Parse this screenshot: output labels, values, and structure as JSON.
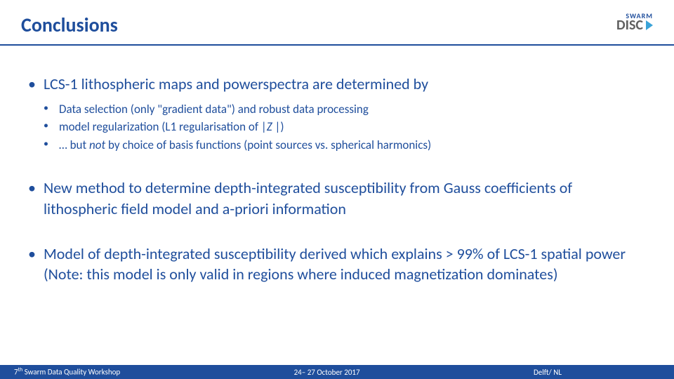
{
  "header": {
    "title": "Conclusions",
    "logo_top": "SWARM",
    "logo_main": "DISC"
  },
  "bullets": [
    {
      "text": "LCS-1 lithospheric maps and powerspectra are determined by",
      "sub": [
        {
          "pre": "Data selection (only \"gradient data\") and robust data processing"
        },
        {
          "pre": "model regularization (L1 regularisation of |",
          "italic": "Z",
          "post": " |)"
        },
        {
          "pre": "… but ",
          "italic": "not ",
          "post": " by choice of basis functions (point sources vs. spherical harmonics)"
        }
      ]
    },
    {
      "text": "New method to determine depth-integrated susceptibility from Gauss coefficients of lithospheric field model and a-priori information"
    },
    {
      "text": "Model of depth-integrated susceptibility derived which explains > 99% of LCS-1 spatial power",
      "note": "(Note: this model is only valid in regions where induced magnetization dominates)"
    }
  ],
  "footer": {
    "left_pre": "7",
    "left_sup": "th",
    "left_post": " Swarm Data Quality Workshop",
    "center": "24– 27 October 2017",
    "right": "Delft/ NL"
  },
  "colors": {
    "primary": "#1f4e9c",
    "accent": "#3aa3d8",
    "bg": "#ffffff"
  }
}
